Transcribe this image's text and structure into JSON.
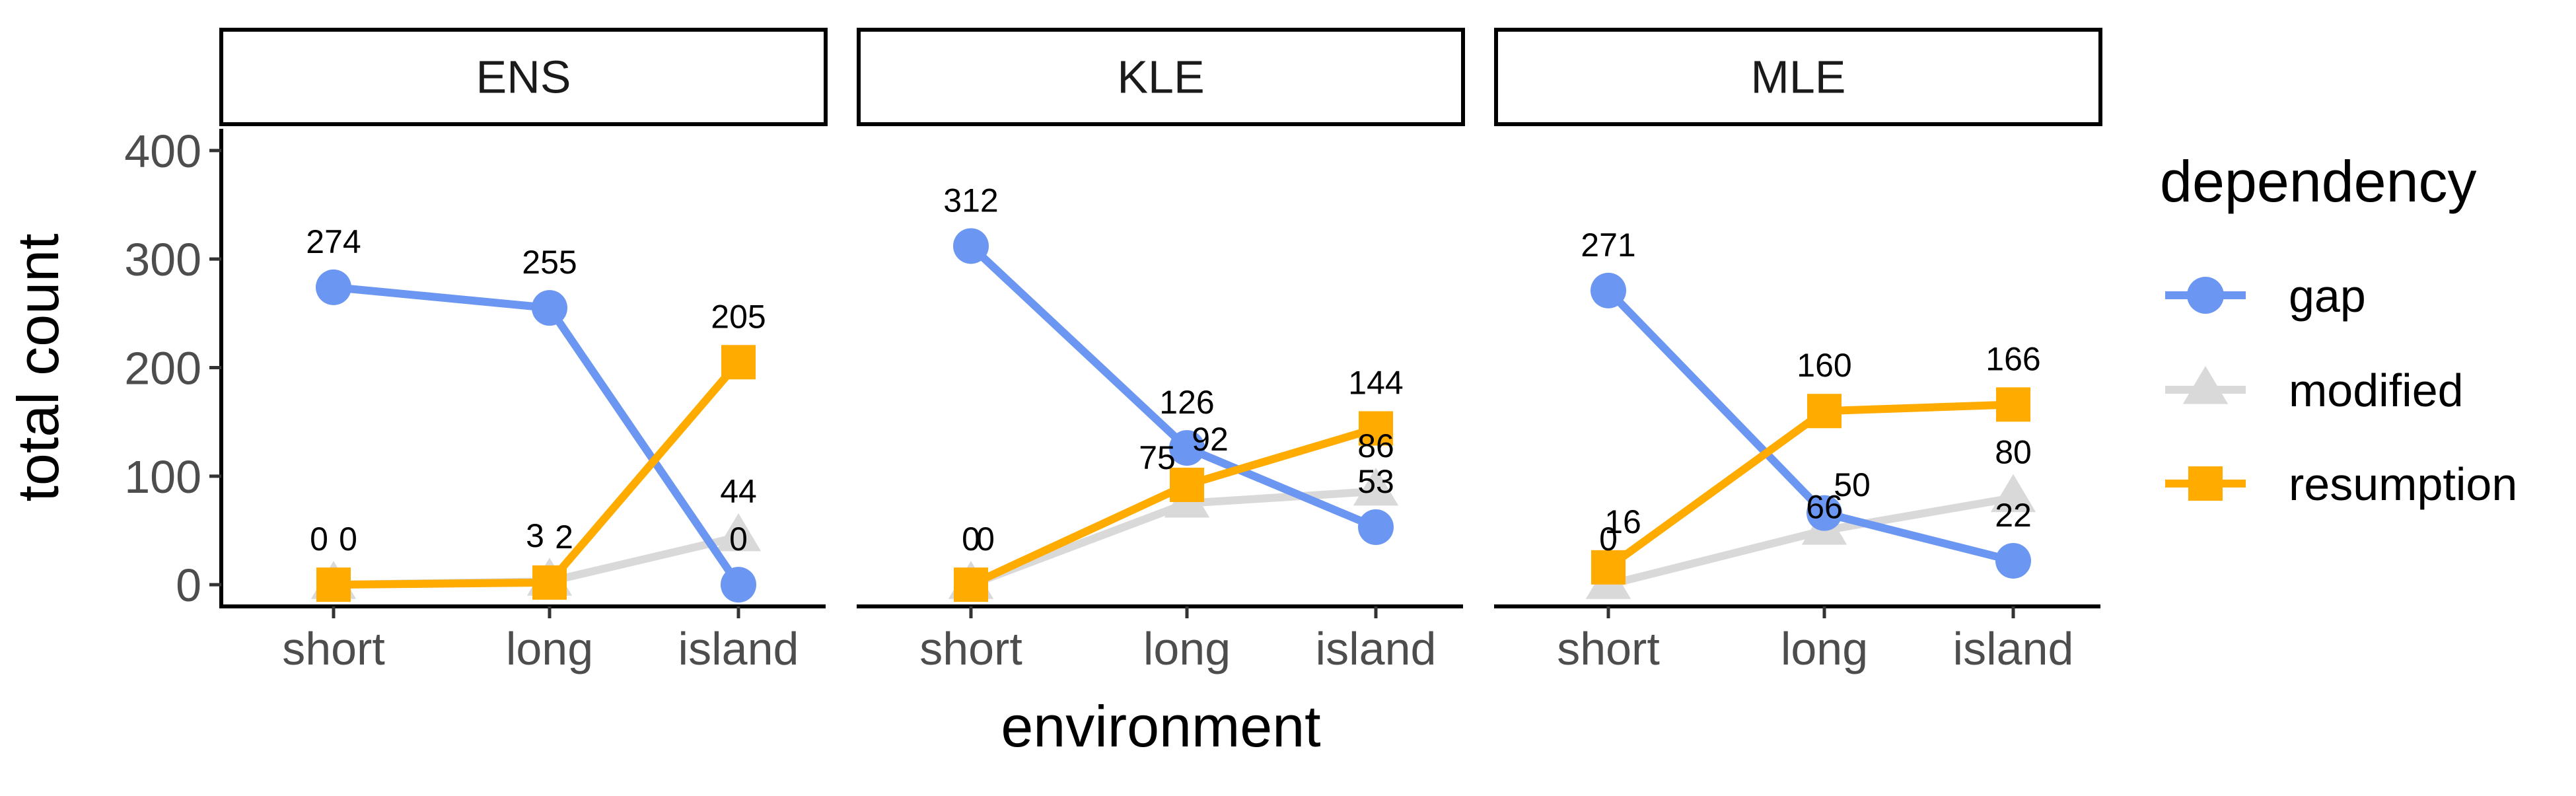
{
  "chart_data": {
    "type": "line",
    "facet_var": "",
    "panels": [
      "ENS",
      "KLE",
      "MLE"
    ],
    "categories": [
      "short",
      "long",
      "island"
    ],
    "xlabel": "environment",
    "ylabel": "total count",
    "ylim": [
      -20,
      420
    ],
    "yticks": [
      0,
      100,
      200,
      300,
      400
    ],
    "grid": false,
    "legend": {
      "title": "dependency",
      "position": "right",
      "items": [
        {
          "name": "gap",
          "color": "#6b96f2",
          "shape": "circle"
        },
        {
          "name": "modified",
          "color": "#d9d9d9",
          "shape": "triangle"
        },
        {
          "name": "resumption",
          "color": "#ffab00",
          "shape": "square"
        }
      ]
    },
    "series": [
      {
        "name": "gap",
        "color": "#6b96f2",
        "shape": "circle",
        "values": {
          "ENS": [
            274,
            255,
            0
          ],
          "KLE": [
            312,
            126,
            53
          ],
          "MLE": [
            271,
            66,
            22
          ]
        }
      },
      {
        "name": "modified",
        "color": "#d9d9d9",
        "shape": "triangle",
        "values": {
          "ENS": [
            0,
            3,
            44
          ],
          "KLE": [
            0,
            75,
            86
          ],
          "MLE": [
            0,
            50,
            80
          ]
        }
      },
      {
        "name": "resumption",
        "color": "#ffab00",
        "shape": "square",
        "values": {
          "ENS": [
            0,
            2,
            205
          ],
          "KLE": [
            0,
            92,
            144
          ],
          "MLE": [
            16,
            160,
            166
          ]
        }
      }
    ]
  }
}
